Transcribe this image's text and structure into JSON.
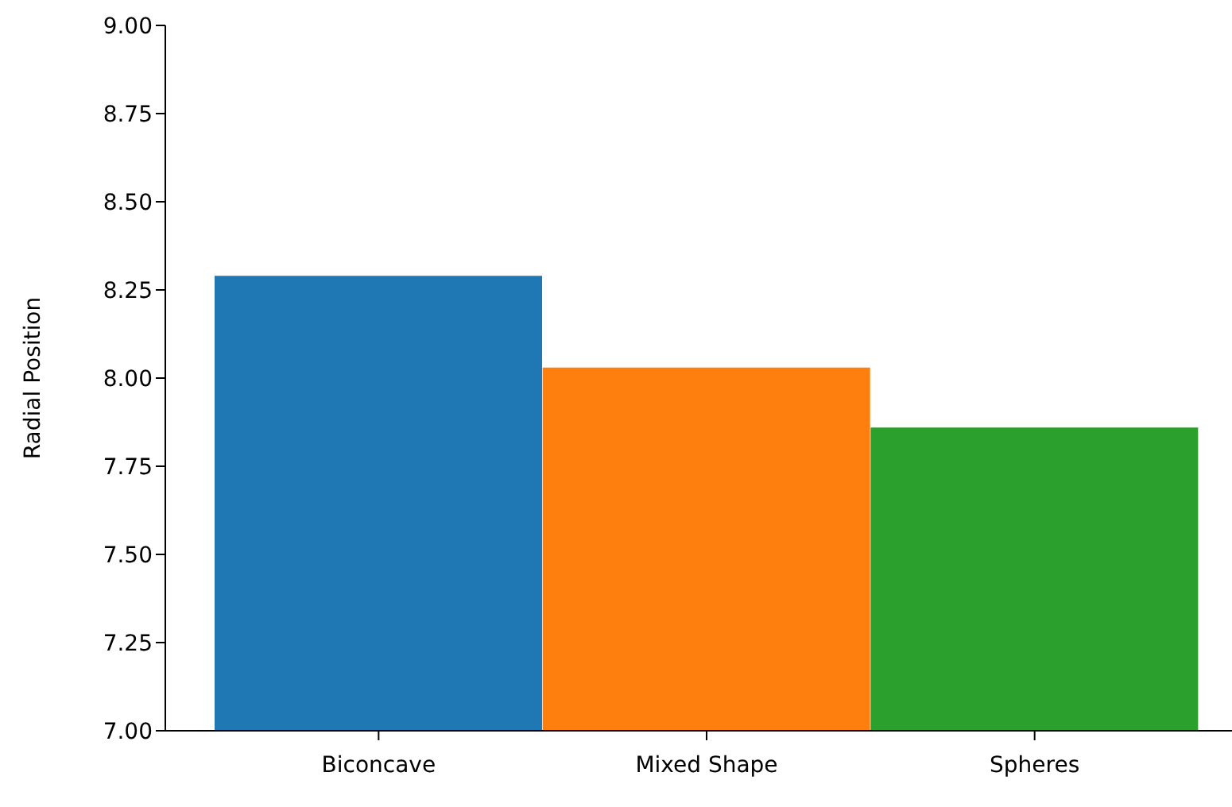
{
  "chart_data": {
    "type": "bar",
    "ylabel": "Radial Position",
    "categories": [
      "Biconcave",
      "Mixed Shape",
      "Spheres"
    ],
    "values": [
      8.29,
      8.03,
      7.86
    ],
    "colors": [
      "#1f77b4",
      "#ff7f0e",
      "#2ca02c"
    ],
    "ylim": [
      7,
      9
    ],
    "yticks": [
      {
        "value": 7,
        "label": "7.00"
      },
      {
        "value": 7.25,
        "label": "7.25"
      },
      {
        "value": 7.5,
        "label": "7.50"
      },
      {
        "value": 7.75,
        "label": "7.75"
      },
      {
        "value": 8,
        "label": "8.00"
      },
      {
        "value": 8.25,
        "label": "8.25"
      },
      {
        "value": 8.5,
        "label": "8.50"
      },
      {
        "value": 8.75,
        "label": "8.75"
      },
      {
        "value": 9,
        "label": "9.00"
      }
    ],
    "grid": false,
    "legend": false
  }
}
